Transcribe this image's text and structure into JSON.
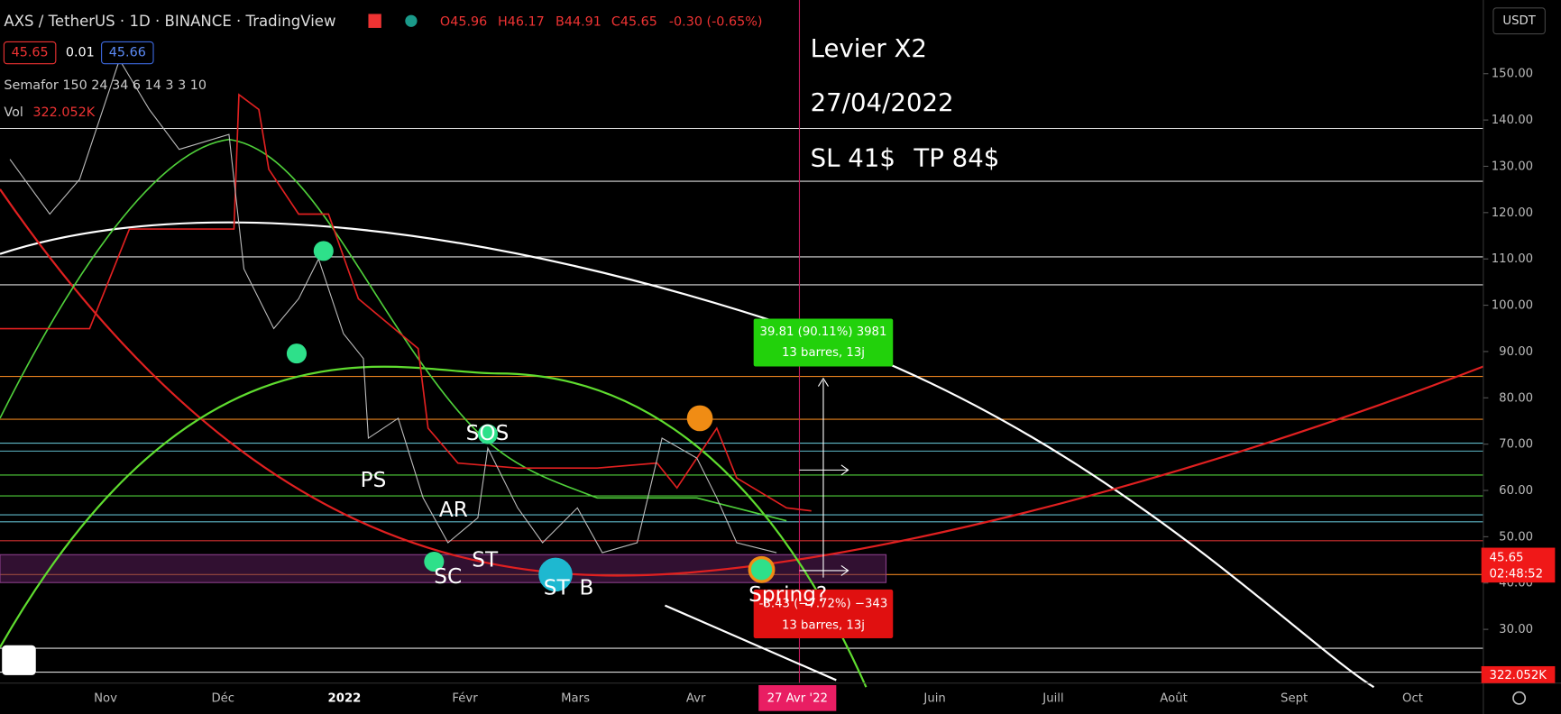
{
  "header": {
    "symbol": "AXS / TetherUS · 1D · BINANCE · TradingView",
    "ohlc": {
      "open": "O45.96",
      "high": "H46.17",
      "low": "B44.91",
      "close": "C45.65",
      "change": "-0.30 (-0.65%)"
    },
    "bid": "45.65",
    "spread": "0.01",
    "ask": "45.66",
    "indicator": "Semafor 150 24 34 6 14 3 3 10",
    "volume_label": "Vol",
    "volume_value": "322.052K"
  },
  "annotations": {
    "leverage": "Levier X2",
    "date": "27/04/2022",
    "stop_loss": "SL 41$",
    "take_profit": "TP 84$",
    "labels": [
      "PS",
      "SC",
      "AR",
      "ST",
      "SOS",
      "ST",
      "B",
      "Spring?"
    ]
  },
  "measure_boxes": [
    {
      "line1": "39.81 (90.11%) 3981",
      "line2": "13 barres, 13j"
    },
    {
      "line1": "-3.43 (−7.72%) −343",
      "line2": "13 barres, 13j"
    }
  ],
  "price_axis": {
    "currency": "USDT",
    "ticks": [
      {
        "value": 30,
        "label": "30.00"
      },
      {
        "value": 40,
        "label": "40.00"
      },
      {
        "value": 50,
        "label": "50.00"
      },
      {
        "value": 60,
        "label": "60.00"
      },
      {
        "value": 70,
        "label": "70.00"
      },
      {
        "value": 80,
        "label": "80.00"
      },
      {
        "value": 90,
        "label": "90.00"
      },
      {
        "value": 100,
        "label": "100.00"
      },
      {
        "value": 110,
        "label": "110.00"
      },
      {
        "value": 120,
        "label": "120.00"
      },
      {
        "value": 130,
        "label": "130.00"
      },
      {
        "value": 140,
        "label": "140.00"
      },
      {
        "value": 150,
        "label": "150.00"
      }
    ],
    "last_price": "45.65",
    "countdown": "02:48:52",
    "last_volume": "322.052K"
  },
  "time_axis": {
    "labels": [
      "Nov",
      "Déc",
      "2022",
      "Févr",
      "Mars",
      "Avr",
      "Juin",
      "Juill",
      "Août",
      "Sept",
      "Oct"
    ],
    "cursor": "27 Avr '22"
  }
}
